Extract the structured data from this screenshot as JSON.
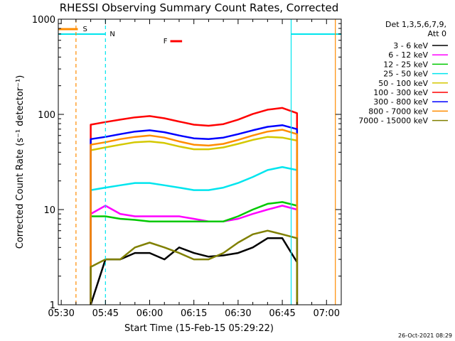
{
  "chart_data": {
    "type": "line",
    "title": "RHESSI Observing Summary Count Rates, Corrected",
    "xlabel": "Start Time (15-Feb-15 05:29:22)",
    "ylabel": "Corrected Count Rate (s⁻¹ detector⁻¹)",
    "x_scale": "time (minutes)",
    "y_scale": "log",
    "xlim": [
      "05:29",
      "07:05"
    ],
    "ylim": [
      1,
      1000
    ],
    "x_ticks": [
      "05:30",
      "05:45",
      "06:00",
      "06:15",
      "06:30",
      "06:45",
      "07:00"
    ],
    "y_ticks": [
      "1",
      "10",
      "100",
      "1000"
    ],
    "legend_header": [
      "Det 1,3,5,6,7,9,",
      "Att 0"
    ],
    "footer": "26-Oct-2021 08:29",
    "flags": [
      {
        "label": "S",
        "color": "#ff8c00",
        "time_start": "05:29",
        "time_end": "05:32"
      },
      {
        "label": "N",
        "color": "#00e5ee",
        "time_start": "05:29",
        "time_end": "05:45"
      },
      {
        "label": "F",
        "color": "#ff0000",
        "time_start": "06:07",
        "time_end": "06:11"
      },
      {
        "label": "",
        "color": "#00e5ee",
        "time_start": "06:48",
        "time_end": "07:05"
      }
    ],
    "markers": [
      {
        "time": "05:35",
        "color": "#ff8c00",
        "style": "dashed"
      },
      {
        "time": "05:45",
        "color": "#00e5ee",
        "style": "dashed"
      },
      {
        "time": "06:48",
        "color": "#00e5ee",
        "style": "solid"
      },
      {
        "time": "07:03",
        "color": "#ff8c00",
        "style": "solid"
      }
    ],
    "x": [
      "05:40",
      "05:45",
      "05:50",
      "05:55",
      "06:00",
      "06:05",
      "06:10",
      "06:15",
      "06:20",
      "06:25",
      "06:30",
      "06:35",
      "06:40",
      "06:45",
      "06:50"
    ],
    "series": [
      {
        "name": "3 - 6 keV",
        "color": "#000000",
        "values": [
          1,
          3,
          3,
          3.5,
          3.5,
          3,
          4,
          3.5,
          3.2,
          3.3,
          3.5,
          4,
          5,
          5,
          2.8
        ]
      },
      {
        "name": "6 - 12 keV",
        "color": "#ff00ff",
        "values": [
          9,
          11,
          9,
          8.5,
          8.5,
          8.5,
          8.5,
          8,
          7.5,
          7.5,
          8,
          9,
          10,
          11,
          10
        ]
      },
      {
        "name": "12 - 25 keV",
        "color": "#00c800",
        "values": [
          8.5,
          8.5,
          8,
          7.8,
          7.5,
          7.5,
          7.5,
          7.5,
          7.5,
          7.5,
          8.5,
          10,
          11.5,
          12,
          11
        ]
      },
      {
        "name": "25 - 50 keV",
        "color": "#00e5ee",
        "values": [
          16,
          17,
          18,
          19,
          19,
          18,
          17,
          16,
          16,
          17,
          19,
          22,
          26,
          28,
          26
        ]
      },
      {
        "name": "50 - 100 keV",
        "color": "#d4c800",
        "values": [
          42,
          45,
          48,
          51,
          52,
          50,
          46,
          43,
          43,
          45,
          49,
          54,
          58,
          57,
          53
        ]
      },
      {
        "name": "100 - 300 keV",
        "color": "#ff0000",
        "values": [
          78,
          83,
          88,
          93,
          96,
          91,
          84,
          78,
          76,
          79,
          88,
          101,
          112,
          117,
          103
        ]
      },
      {
        "name": "300 - 800 keV",
        "color": "#0000ff",
        "values": [
          55,
          58,
          62,
          66,
          68,
          65,
          60,
          56,
          55,
          57,
          62,
          68,
          74,
          77,
          70
        ]
      },
      {
        "name": "800 - 7000 keV",
        "color": "#ff8c00",
        "values": [
          48,
          51,
          55,
          58,
          60,
          57,
          52,
          48,
          47,
          49,
          54,
          60,
          66,
          69,
          62
        ]
      },
      {
        "name": "7000 - 15000 keV",
        "color": "#808000",
        "values": [
          2.5,
          3,
          3,
          4,
          4.5,
          4,
          3.5,
          3,
          3,
          3.5,
          4.5,
          5.5,
          6,
          5.5,
          5
        ]
      }
    ]
  }
}
